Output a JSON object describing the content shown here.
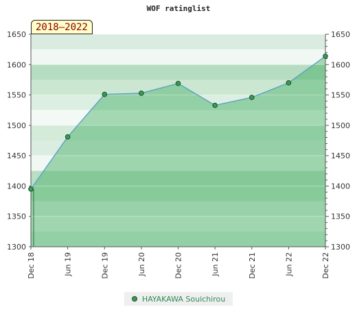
{
  "chart_data": {
    "type": "area",
    "title": "WOF ratinglist",
    "period_label": "2018–2022",
    "categories": [
      "Dec 18",
      "Jun 19",
      "Dec 19",
      "Jun 20",
      "Dec 20",
      "Jun 21",
      "Dec 21",
      "Jun 22",
      "Dec 22"
    ],
    "yticks": [
      1300,
      1350,
      1400,
      1450,
      1500,
      1550,
      1600,
      1650
    ],
    "ylim": [
      1300,
      1650
    ],
    "grid": true,
    "legend_position": "bottom",
    "series": [
      {
        "name": "HAYAKAWA Souichirou",
        "values": [
          1395,
          1481,
          1551,
          1553,
          1569,
          1533,
          1546,
          1570,
          1614
        ]
      }
    ],
    "colors": {
      "line": "#5aa0c8",
      "area": "#3aaa5a",
      "marker_fill": "#3a9a55",
      "marker_stroke": "#1d4d2a",
      "badge_text": "#8b0000",
      "badge_bg": "#fffdc8",
      "legend_text": "#2e8b57"
    }
  }
}
